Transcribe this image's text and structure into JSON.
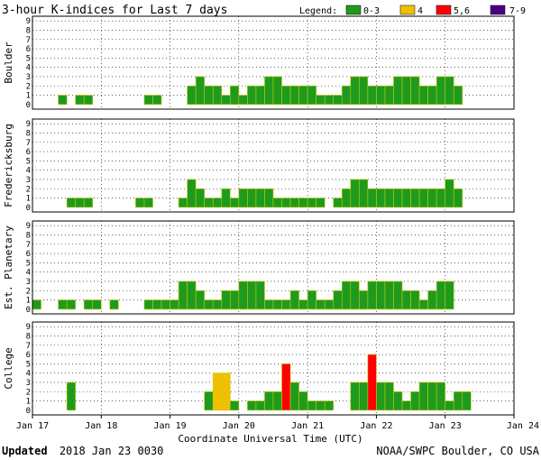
{
  "title": "3-hour K-indices for Last 7 days",
  "legend": {
    "label": "Legend:",
    "items": [
      {
        "label": "0-3",
        "color": "#1e9b1e"
      },
      {
        "label": "4",
        "color": "#f0c000"
      },
      {
        "label": "5,6",
        "color": "#ff0000"
      },
      {
        "label": "7-9",
        "color": "#4b0082"
      }
    ]
  },
  "footer": {
    "updated_label": "Updated",
    "updated_value": "2018 Jan 23 0030",
    "source": "NOAA/SWPC Boulder, CO USA"
  },
  "chart_data": {
    "type": "bar",
    "xlabel": "Coordinate Universal Time (UTC)",
    "x_ticks": [
      "Jan 17",
      "Jan 18",
      "Jan 19",
      "Jan 20",
      "Jan 21",
      "Jan 22",
      "Jan 23",
      "Jan 24"
    ],
    "ylim": [
      0,
      9
    ],
    "y_ticks": [
      "0",
      "1",
      "2",
      "3",
      "4",
      "5",
      "6",
      "7",
      "8",
      "9"
    ],
    "grid": true,
    "intervals_per_day": 8,
    "panels": [
      {
        "name": "Boulder",
        "values": [
          0,
          0,
          0,
          1,
          0,
          1,
          1,
          0,
          0,
          0,
          0,
          0,
          0,
          1,
          1,
          0,
          0,
          0,
          2,
          3,
          2,
          2,
          1,
          2,
          1,
          2,
          2,
          3,
          3,
          2,
          2,
          2,
          2,
          1,
          1,
          1,
          2,
          3,
          3,
          2,
          2,
          2,
          3,
          3,
          3,
          2,
          2,
          3,
          3,
          2
        ]
      },
      {
        "name": "Fredericksburg",
        "values": [
          0,
          0,
          0,
          0,
          1,
          1,
          1,
          0,
          0,
          0,
          0,
          0,
          1,
          1,
          0,
          0,
          0,
          1,
          3,
          2,
          1,
          1,
          2,
          1,
          2,
          2,
          2,
          2,
          1,
          1,
          1,
          1,
          1,
          1,
          0,
          1,
          2,
          3,
          3,
          2,
          2,
          2,
          2,
          2,
          2,
          2,
          2,
          2,
          3,
          2
        ]
      },
      {
        "name": "Est. Planetary",
        "values": [
          1,
          0,
          0,
          1,
          1,
          0,
          1,
          1,
          0,
          1,
          0,
          0,
          0,
          1,
          1,
          1,
          1,
          3,
          3,
          2,
          1,
          1,
          2,
          2,
          3,
          3,
          3,
          1,
          1,
          1,
          2,
          1,
          2,
          1,
          1,
          2,
          3,
          3,
          2,
          3,
          3,
          3,
          3,
          2,
          2,
          1,
          2,
          3,
          3,
          0
        ]
      },
      {
        "name": "College",
        "values": [
          0,
          0,
          0,
          0,
          3,
          0,
          0,
          0,
          0,
          0,
          0,
          0,
          0,
          0,
          0,
          0,
          0,
          0,
          0,
          0,
          2,
          4,
          4,
          1,
          0,
          1,
          1,
          2,
          2,
          5,
          3,
          2,
          1,
          1,
          1,
          0,
          0,
          3,
          3,
          6,
          3,
          3,
          2,
          1,
          2,
          3,
          3,
          3,
          1,
          2,
          2
        ]
      }
    ]
  }
}
